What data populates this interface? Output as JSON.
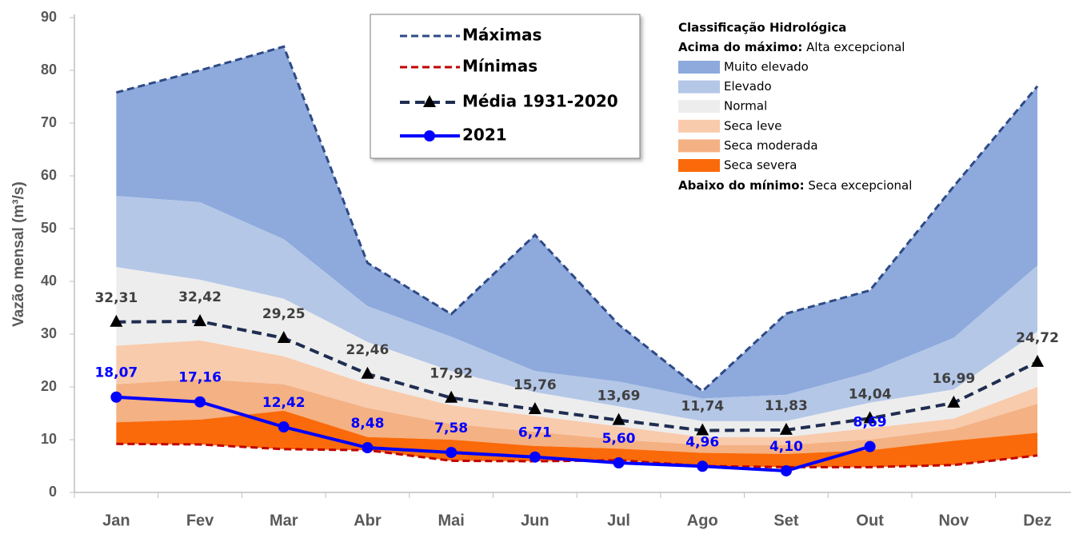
{
  "chart_data": {
    "type": "line",
    "y_axis_label": "Vazão mensal (m³/s)",
    "categories": [
      "Jan",
      "Fev",
      "Mar",
      "Abr",
      "Mai",
      "Jun",
      "Jul",
      "Ago",
      "Set",
      "Out",
      "Nov",
      "Dez"
    ],
    "ylim": [
      0,
      90
    ],
    "yticks": [
      0,
      10,
      20,
      30,
      40,
      50,
      60,
      70,
      80,
      90
    ],
    "classification": {
      "title": "Classificação Hidrológica",
      "above_label": "Acima do máximo:",
      "above_text": " Alta excepcional",
      "below_label": "Abaixo do mínimo:",
      "below_text": " Seca excepcional",
      "bands": [
        {
          "name": "Muito elevado",
          "color": "#8eaadc"
        },
        {
          "name": "Elevado",
          "color": "#b4c7e7",
          "values": [
            56.2,
            55,
            48,
            35.3,
            29.5,
            23,
            21,
            17.8,
            18.5,
            22.8,
            29.3,
            43
          ]
        },
        {
          "name": "Normal",
          "color": "#ededed",
          "values": [
            42.7,
            40.3,
            36.7,
            28.5,
            23,
            19,
            16.3,
            13.5,
            13.5,
            17,
            19.5,
            30.5
          ]
        },
        {
          "name": "Seca leve",
          "color": "#f8cbad",
          "values": [
            27.8,
            28.8,
            25.8,
            20.5,
            16.5,
            14.5,
            12.5,
            10.5,
            10.5,
            12.2,
            14,
            20
          ]
        },
        {
          "name": "Seca moderada",
          "color": "#f4b183",
          "values": [
            20.5,
            21.5,
            20.5,
            16,
            13,
            11.5,
            10,
            9,
            9,
            10,
            12,
            16.8
          ]
        },
        {
          "name": "Seca severa",
          "color": "#fa6a0a",
          "values": [
            13.3,
            13.8,
            15.5,
            10.5,
            10,
            8.8,
            8.3,
            7.5,
            7.3,
            8,
            9.8,
            11.3
          ]
        }
      ]
    },
    "series": [
      {
        "name": "Máximas",
        "color": "#2e4a86",
        "style": "dashed",
        "values": [
          75.8,
          80,
          84.5,
          43.5,
          33.8,
          48.8,
          31.8,
          19.2,
          33.9,
          38.3,
          58,
          77
        ]
      },
      {
        "name": "Mínimas",
        "color": "#c00000",
        "style": "dashed",
        "values": [
          9.2,
          9.1,
          8.2,
          8,
          6,
          5.9,
          6.1,
          5,
          4.8,
          4.8,
          5.2,
          7
        ]
      },
      {
        "name": "Média 1931-2020",
        "color": "#1f2d50",
        "style": "dashed",
        "marker": "triangle",
        "label_color": "#404040",
        "values": [
          32.31,
          32.42,
          29.25,
          22.46,
          17.92,
          15.76,
          13.69,
          11.74,
          11.83,
          14.04,
          16.99,
          24.72
        ],
        "value_labels": [
          "32,31",
          "32,42",
          "29,25",
          "22,46",
          "17,92",
          "15,76",
          "13,69",
          "11,74",
          "11,83",
          "14,04",
          "16,99",
          "24,72"
        ]
      },
      {
        "name": "2021",
        "color": "#0000ff",
        "style": "solid",
        "marker": "circle",
        "label_color": "#0000ff",
        "values": [
          18.07,
          17.16,
          12.42,
          8.48,
          7.58,
          6.71,
          5.6,
          4.96,
          4.1,
          8.69,
          null,
          null
        ],
        "value_labels": [
          "18,07",
          "17,16",
          "12,42",
          "8,48",
          "7,58",
          "6,71",
          "5,60",
          "4,96",
          "4,10",
          "8,69",
          null,
          null
        ]
      }
    ]
  }
}
